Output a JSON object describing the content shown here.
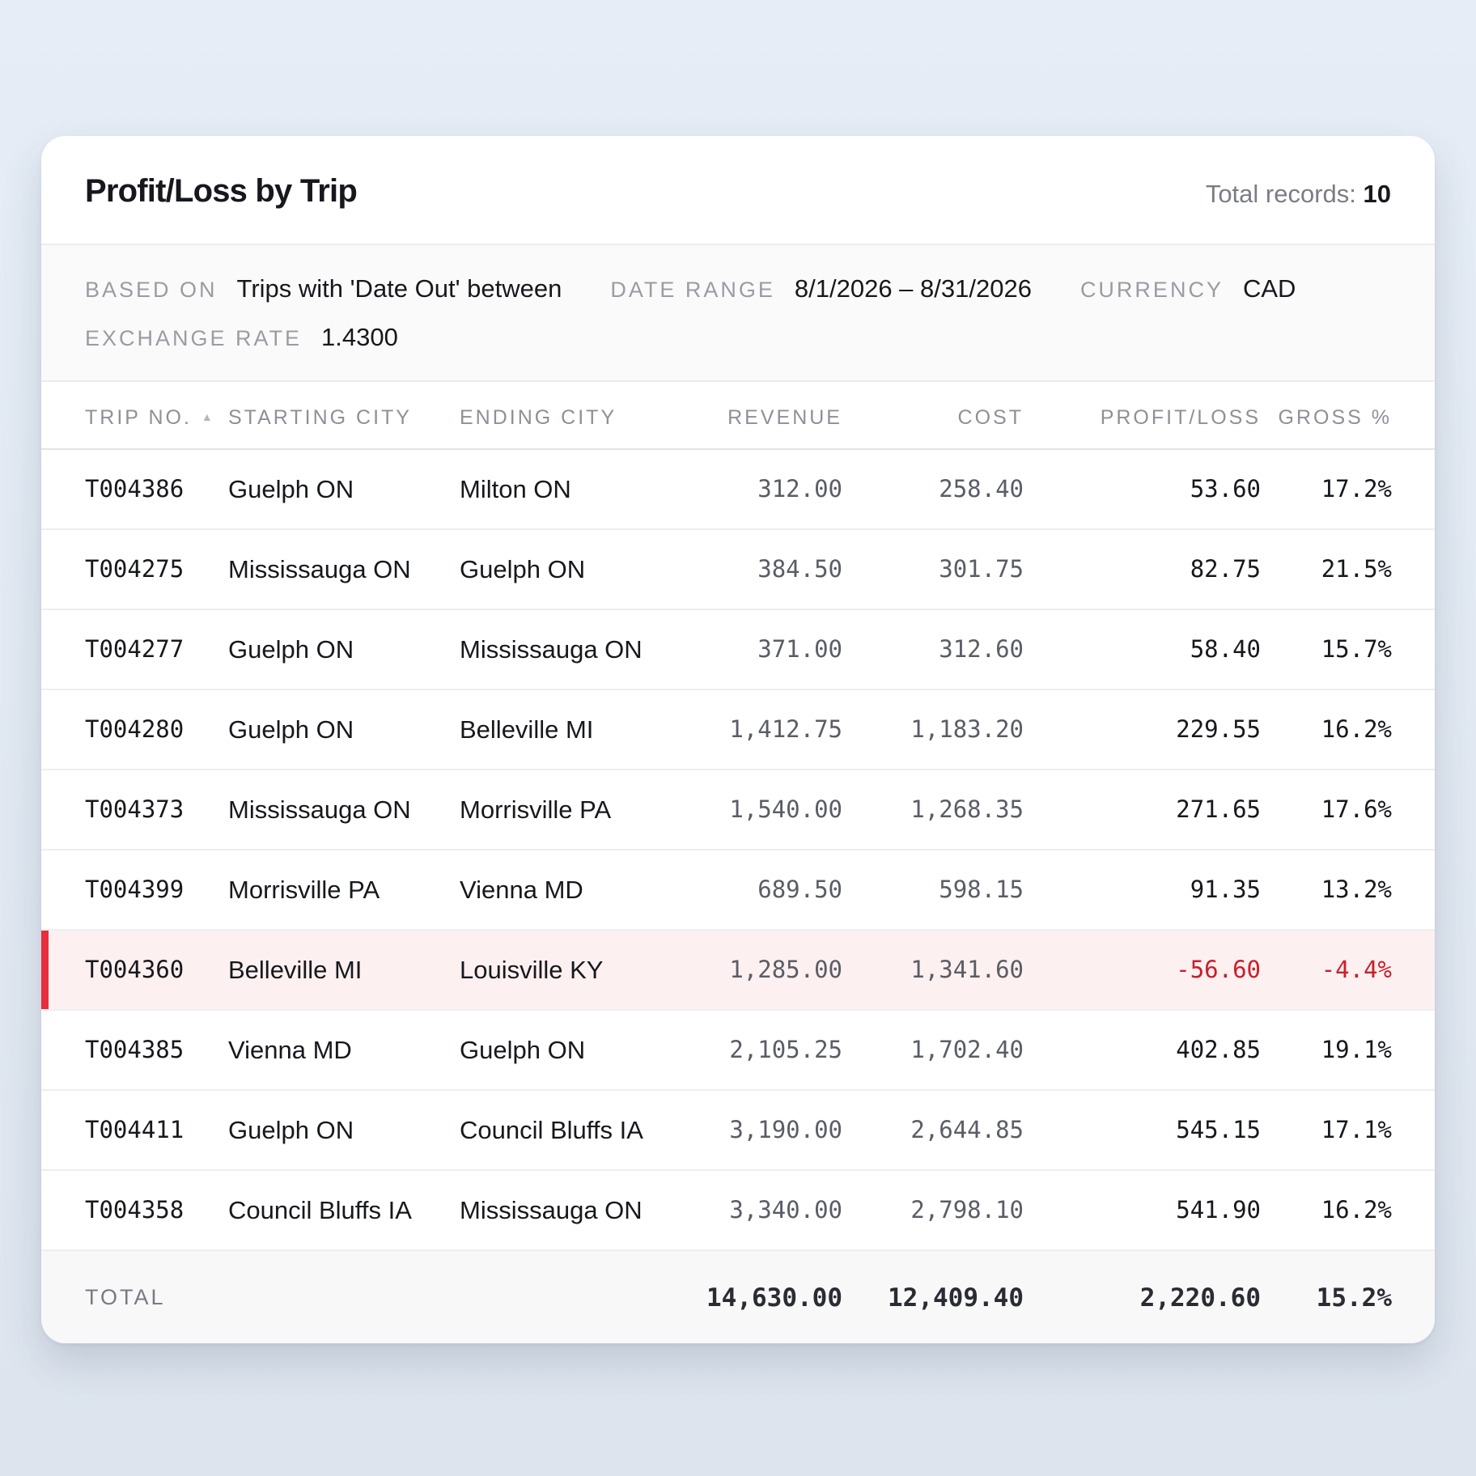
{
  "report": {
    "title": "Profit/Loss by Trip",
    "total_records_label": "Total records:",
    "total_records_value": "10"
  },
  "meta": {
    "based_on_label": "BASED ON",
    "based_on_value": "Trips with 'Date Out' between",
    "date_range_label": "DATE RANGE",
    "date_range_value": "8/1/2026 – 8/31/2026",
    "currency_label": "CURRENCY",
    "currency_value": "CAD",
    "exchange_rate_label": "EXCHANGE RATE",
    "exchange_rate_value": "1.4300"
  },
  "table": {
    "headers": {
      "trip_no": "TRIP NO.",
      "sort_icon": "▲",
      "starting_city": "STARTING CITY",
      "ending_city": "ENDING CITY",
      "revenue": "REVENUE",
      "cost": "COST",
      "profit_loss": "PROFIT/LOSS",
      "gross": "GROSS %"
    },
    "rows": [
      {
        "trip": "T004386",
        "start": "Guelph ON",
        "end": "Milton ON",
        "revenue": "312.00",
        "cost": "258.40",
        "pl": "53.60",
        "gross": "17.2%",
        "negative": false
      },
      {
        "trip": "T004275",
        "start": "Mississauga ON",
        "end": "Guelph ON",
        "revenue": "384.50",
        "cost": "301.75",
        "pl": "82.75",
        "gross": "21.5%",
        "negative": false
      },
      {
        "trip": "T004277",
        "start": "Guelph ON",
        "end": "Mississauga ON",
        "revenue": "371.00",
        "cost": "312.60",
        "pl": "58.40",
        "gross": "15.7%",
        "negative": false
      },
      {
        "trip": "T004280",
        "start": "Guelph ON",
        "end": "Belleville MI",
        "revenue": "1,412.75",
        "cost": "1,183.20",
        "pl": "229.55",
        "gross": "16.2%",
        "negative": false
      },
      {
        "trip": "T004373",
        "start": "Mississauga ON",
        "end": "Morrisville PA",
        "revenue": "1,540.00",
        "cost": "1,268.35",
        "pl": "271.65",
        "gross": "17.6%",
        "negative": false
      },
      {
        "trip": "T004399",
        "start": "Morrisville PA",
        "end": "Vienna MD",
        "revenue": "689.50",
        "cost": "598.15",
        "pl": "91.35",
        "gross": "13.2%",
        "negative": false
      },
      {
        "trip": "T004360",
        "start": "Belleville MI",
        "end": "Louisville KY",
        "revenue": "1,285.00",
        "cost": "1,341.60",
        "pl": "-56.60",
        "gross": "-4.4%",
        "negative": true
      },
      {
        "trip": "T004385",
        "start": "Vienna MD",
        "end": "Guelph ON",
        "revenue": "2,105.25",
        "cost": "1,702.40",
        "pl": "402.85",
        "gross": "19.1%",
        "negative": false
      },
      {
        "trip": "T004411",
        "start": "Guelph ON",
        "end": "Council Bluffs IA",
        "revenue": "3,190.00",
        "cost": "2,644.85",
        "pl": "545.15",
        "gross": "17.1%",
        "negative": false
      },
      {
        "trip": "T004358",
        "start": "Council Bluffs IA",
        "end": "Mississauga ON",
        "revenue": "3,340.00",
        "cost": "2,798.10",
        "pl": "541.90",
        "gross": "16.2%",
        "negative": false
      }
    ],
    "totals": {
      "label": "TOTAL",
      "revenue": "14,630.00",
      "cost": "12,409.40",
      "pl": "2,220.60",
      "gross": "15.2%"
    }
  },
  "colors": {
    "negative_accent": "#e5303b",
    "negative_text": "#c8202c",
    "negative_row_bg": "#fdf0f0"
  }
}
